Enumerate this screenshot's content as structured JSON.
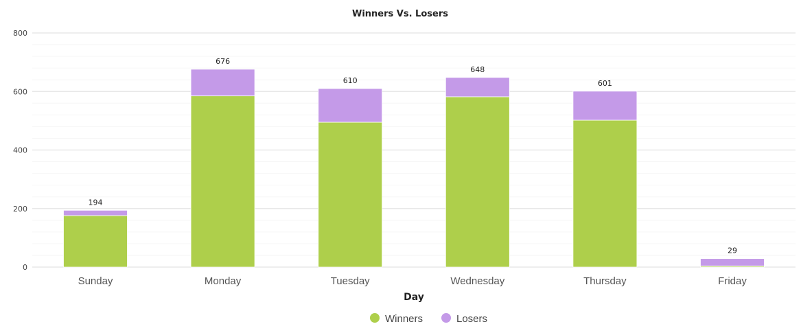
{
  "chart_data": {
    "type": "bar",
    "stacked": true,
    "title": "Winners Vs. Losers",
    "xlabel": "Day",
    "ylabel": "",
    "ylim": [
      0,
      800
    ],
    "yticks": [
      0,
      200,
      400,
      600,
      800
    ],
    "categories": [
      "Sunday",
      "Monday",
      "Tuesday",
      "Wednesday",
      "Thursday",
      "Friday"
    ],
    "series": [
      {
        "name": "Winners",
        "color": "#aecf4b",
        "values": [
          176,
          585,
          495,
          582,
          502,
          4
        ]
      },
      {
        "name": "Losers",
        "color": "#c49ae8",
        "values": [
          18,
          91,
          115,
          66,
          99,
          25
        ]
      }
    ],
    "totals": [
      "194",
      "676",
      "610",
      "648",
      "601",
      "29"
    ],
    "grid": true,
    "legend_position": "bottom"
  }
}
